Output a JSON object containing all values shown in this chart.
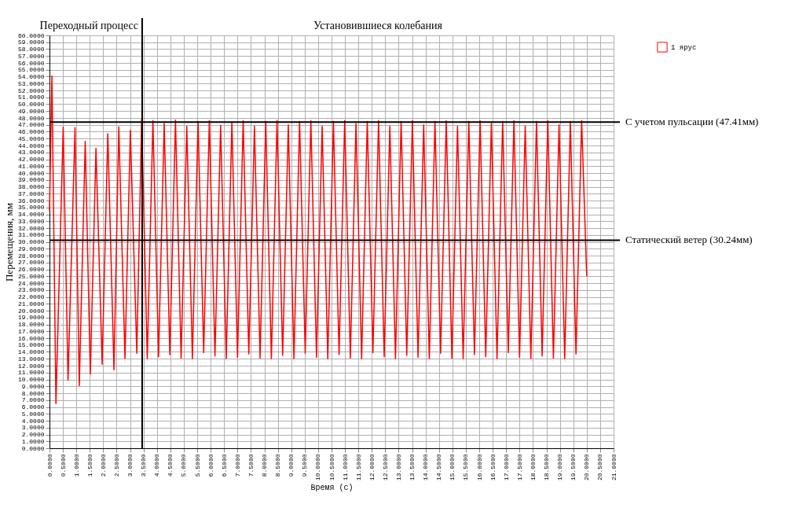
{
  "chart_data": {
    "type": "line",
    "xlabel": "Время (с)",
    "ylabel": "Перемещения, мм",
    "legend": "top right",
    "grid": true,
    "line_style": "solid",
    "marker": "none",
    "annotations": [
      "Переходный процесс",
      "Установившиеся колебания"
    ],
    "xlim": [
      0,
      21
    ],
    "ylim": [
      0,
      60
    ],
    "xticks": [
      {
        "value": 0,
        "label": "0.0000"
      },
      {
        "value": 0.5,
        "label": "0.5000"
      },
      {
        "value": 1,
        "label": "1.0000"
      },
      {
        "value": 1.5,
        "label": "1.5000"
      },
      {
        "value": 2,
        "label": "2.0000"
      },
      {
        "value": 2.5,
        "label": "2.5000"
      },
      {
        "value": 3,
        "label": "3.0000"
      },
      {
        "value": 3.5,
        "label": "3.5000"
      },
      {
        "value": 4,
        "label": "4.0000"
      },
      {
        "value": 4.5,
        "label": "4.5000"
      },
      {
        "value": 5,
        "label": "5.0000"
      },
      {
        "value": 5.5,
        "label": "5.5000"
      },
      {
        "value": 6,
        "label": "6.0000"
      },
      {
        "value": 6.5,
        "label": "6.5000"
      },
      {
        "value": 7,
        "label": "7.0000"
      },
      {
        "value": 7.5,
        "label": "7.5000"
      },
      {
        "value": 8,
        "label": "8.0000"
      },
      {
        "value": 8.5,
        "label": "8.5000"
      },
      {
        "value": 9,
        "label": "9.0000"
      },
      {
        "value": 9.5,
        "label": "9.5000"
      },
      {
        "value": 10,
        "label": "10.0000"
      },
      {
        "value": 10.5,
        "label": "10.5000"
      },
      {
        "value": 11,
        "label": "11.0000"
      },
      {
        "value": 11.5,
        "label": "11.5000"
      },
      {
        "value": 12,
        "label": "12.0000"
      },
      {
        "value": 12.5,
        "label": "12.5000"
      },
      {
        "value": 13,
        "label": "13.0000"
      },
      {
        "value": 13.5,
        "label": "13.5000"
      },
      {
        "value": 14,
        "label": "14.0000"
      },
      {
        "value": 14.5,
        "label": "14.5000"
      },
      {
        "value": 15,
        "label": "15.0000"
      },
      {
        "value": 15.5,
        "label": "15.5000"
      },
      {
        "value": 16,
        "label": "16.0000"
      },
      {
        "value": 16.5,
        "label": "16.5000"
      },
      {
        "value": 17,
        "label": "17.0000"
      },
      {
        "value": 17.5,
        "label": "17.5000"
      },
      {
        "value": 18,
        "label": "18.0000"
      },
      {
        "value": 18.5,
        "label": "18.5000"
      },
      {
        "value": 19,
        "label": "19.0000"
      },
      {
        "value": 19.5,
        "label": "19.5000"
      },
      {
        "value": 20,
        "label": "20.0000"
      },
      {
        "value": 20.5,
        "label": "20.5000"
      },
      {
        "value": 21,
        "label": "21.0000"
      }
    ],
    "yticks": [
      {
        "value": 0,
        "label": "0.0000"
      },
      {
        "value": 1,
        "label": "1.0000"
      },
      {
        "value": 2,
        "label": "2.0000"
      },
      {
        "value": 3,
        "label": "3.0000"
      },
      {
        "value": 4,
        "label": "4.0000"
      },
      {
        "value": 5,
        "label": "5.0000"
      },
      {
        "value": 6,
        "label": "6.0000"
      },
      {
        "value": 7,
        "label": "7.0000"
      },
      {
        "value": 8,
        "label": "8.0000"
      },
      {
        "value": 9,
        "label": "9.0000"
      },
      {
        "value": 10,
        "label": "10.0000"
      },
      {
        "value": 11,
        "label": "11.0000"
      },
      {
        "value": 12,
        "label": "12.0000"
      },
      {
        "value": 13,
        "label": "13.0000"
      },
      {
        "value": 14,
        "label": "14.0000"
      },
      {
        "value": 15,
        "label": "15.0000"
      },
      {
        "value": 16,
        "label": "16.0000"
      },
      {
        "value": 17,
        "label": "17.0000"
      },
      {
        "value": 18,
        "label": "18.0000"
      },
      {
        "value": 19,
        "label": "19.0000"
      },
      {
        "value": 20,
        "label": "20.0000"
      },
      {
        "value": 21,
        "label": "21.0000"
      },
      {
        "value": 22,
        "label": "22.0000"
      },
      {
        "value": 23,
        "label": "23.0000"
      },
      {
        "value": 24,
        "label": "24.0000"
      },
      {
        "value": 25,
        "label": "25.0000"
      },
      {
        "value": 26,
        "label": "26.0000"
      },
      {
        "value": 27,
        "label": "27.0000"
      },
      {
        "value": 28,
        "label": "28.0000"
      },
      {
        "value": 29,
        "label": "29.0000"
      },
      {
        "value": 30,
        "label": "30.0000"
      },
      {
        "value": 31,
        "label": "31.0000"
      },
      {
        "value": 32,
        "label": "32.0000"
      },
      {
        "value": 33,
        "label": "33.0000"
      },
      {
        "value": 34,
        "label": "34.0000"
      },
      {
        "value": 35,
        "label": "35.0000"
      },
      {
        "value": 36,
        "label": "36.0000"
      },
      {
        "value": 37,
        "label": "37.0000"
      },
      {
        "value": 38,
        "label": "38.0000"
      },
      {
        "value": 39,
        "label": "39.0000"
      },
      {
        "value": 40,
        "label": "40.0000"
      },
      {
        "value": 41,
        "label": "41.0000"
      },
      {
        "value": 42,
        "label": "42.0000"
      },
      {
        "value": 43,
        "label": "43.0000"
      },
      {
        "value": 44,
        "label": "44.0000"
      },
      {
        "value": 45,
        "label": "45.0000"
      },
      {
        "value": 46,
        "label": "46.0000"
      },
      {
        "value": 47,
        "label": "47.0000"
      },
      {
        "value": 48,
        "label": "48.0000"
      },
      {
        "value": 49,
        "label": "49.0000"
      },
      {
        "value": 50,
        "label": "50.0000"
      },
      {
        "value": 51,
        "label": "51.0000"
      },
      {
        "value": 52,
        "label": "52.0000"
      },
      {
        "value": 53,
        "label": "53.0000"
      },
      {
        "value": 54,
        "label": "54.0000"
      },
      {
        "value": 55,
        "label": "55.0000"
      },
      {
        "value": 56,
        "label": "56.0000"
      },
      {
        "value": 57,
        "label": "57.0000"
      },
      {
        "value": 58,
        "label": "58.0000"
      },
      {
        "value": 59,
        "label": "59.0000"
      },
      {
        "value": 60,
        "label": "60.0000"
      }
    ],
    "ref_lines": [
      {
        "axis": "x",
        "value": 3.45,
        "color": "#000000"
      },
      {
        "axis": "y",
        "value": 47.41,
        "label": "С учетом пульсации (47.41мм)",
        "color": "#000000"
      },
      {
        "axis": "y",
        "value": 30.24,
        "label": "Статический ветер (30.24мм)",
        "color": "#000000"
      }
    ],
    "series": [
      {
        "name": "1 ярус",
        "color": "#ff0000",
        "x": [
          0,
          0.09,
          0.24,
          0.51,
          0.69,
          0.95,
          1.11,
          1.33,
          1.52,
          1.73,
          1.96,
          2.17,
          2.4,
          2.58,
          2.81,
          3.01,
          3.25,
          3.43,
          3.64,
          3.85,
          4.06,
          4.27,
          4.48,
          4.69,
          4.9,
          5.11,
          5.32,
          5.53,
          5.74,
          5.95,
          6.16,
          6.37,
          6.58,
          6.79,
          7.0,
          7.21,
          7.42,
          7.63,
          7.84,
          8.05,
          8.26,
          8.47,
          8.68,
          8.89,
          9.1,
          9.31,
          9.52,
          9.73,
          9.94,
          10.15,
          10.36,
          10.57,
          10.78,
          10.99,
          11.2,
          11.41,
          11.62,
          11.83,
          12.04,
          12.25,
          12.46,
          12.67,
          12.88,
          13.09,
          13.3,
          13.51,
          13.72,
          13.93,
          14.14,
          14.35,
          14.56,
          14.77,
          14.98,
          15.19,
          15.4,
          15.61,
          15.82,
          16.03,
          16.24,
          16.45,
          16.66,
          16.87,
          17.08,
          17.29,
          17.5,
          17.71,
          17.92,
          18.13,
          18.34,
          18.55,
          18.76,
          18.97,
          19.18,
          19.39,
          19.6,
          19.81,
          20.0
        ],
        "values": [
          34.5,
          54.1,
          6.5,
          46.7,
          9.9,
          46.6,
          9.1,
          44.6,
          10.8,
          43.6,
          12.2,
          45.7,
          11.4,
          46.7,
          13.0,
          46.2,
          13.8,
          47.8,
          13.0,
          47.6,
          13.3,
          47.2,
          13.6,
          47.7,
          13.1,
          46.8,
          13.0,
          47.5,
          13.9,
          47.6,
          13.4,
          46.9,
          13.0,
          47.4,
          13.2,
          47.6,
          13.7,
          46.8,
          13.1,
          47.5,
          13.0,
          47.6,
          13.5,
          47.0,
          13.0,
          47.5,
          13.8,
          47.6,
          13.2,
          46.8,
          13.0,
          47.5,
          13.6,
          47.6,
          13.1,
          47.2,
          13.0,
          47.5,
          13.9,
          47.6,
          13.3,
          46.8,
          13.0,
          47.5,
          13.5,
          47.6,
          13.2,
          47.0,
          13.0,
          47.5,
          13.8,
          47.6,
          13.1,
          46.8,
          13.0,
          47.5,
          13.6,
          47.6,
          13.3,
          47.2,
          13.0,
          47.5,
          13.9,
          47.6,
          13.2,
          46.8,
          13.0,
          47.5,
          13.4,
          47.6,
          13.1,
          47.0,
          13.0,
          47.5,
          13.7,
          47.6,
          25.0
        ]
      }
    ]
  }
}
